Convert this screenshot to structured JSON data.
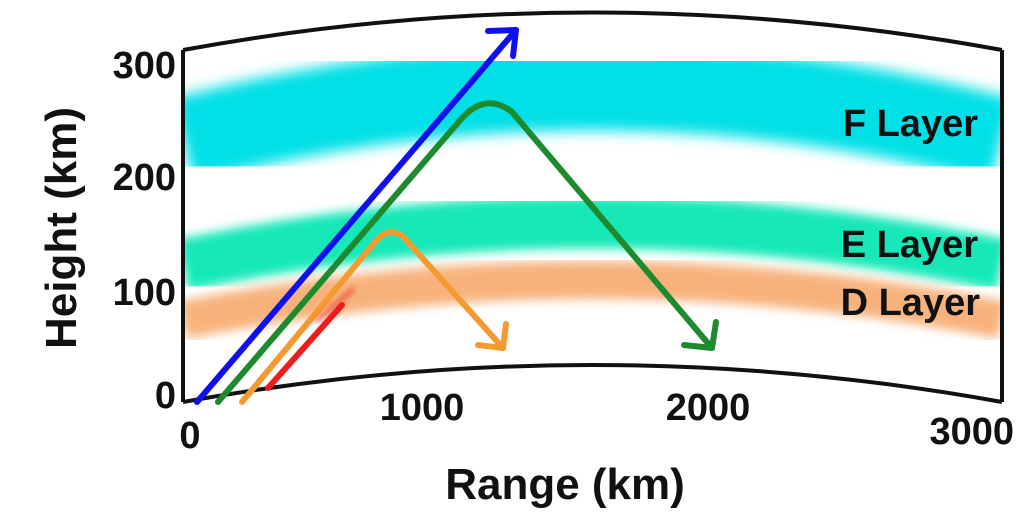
{
  "axes": {
    "xlabel": "Range (km)",
    "ylabel": "Height (km)",
    "x_ticks": [
      "0",
      "1000",
      "2000",
      "3000"
    ],
    "y_ticks": [
      "0",
      "100",
      "200",
      "300"
    ]
  },
  "layers": [
    {
      "label": "F Layer",
      "color": "#00e0e6"
    },
    {
      "label": "E Layer",
      "color": "#12e8b8"
    },
    {
      "label": "D Layer",
      "color": "#f7b27c"
    }
  ],
  "rays": [
    {
      "color": "#1010ee",
      "behavior": "penetrates"
    },
    {
      "color": "#1e8a2e",
      "behavior": "reflected by F layer"
    },
    {
      "color": "#f59a30",
      "behavior": "reflected by E layer"
    },
    {
      "color": "#ee1c1c",
      "behavior": "absorbed by D layer"
    }
  ]
}
